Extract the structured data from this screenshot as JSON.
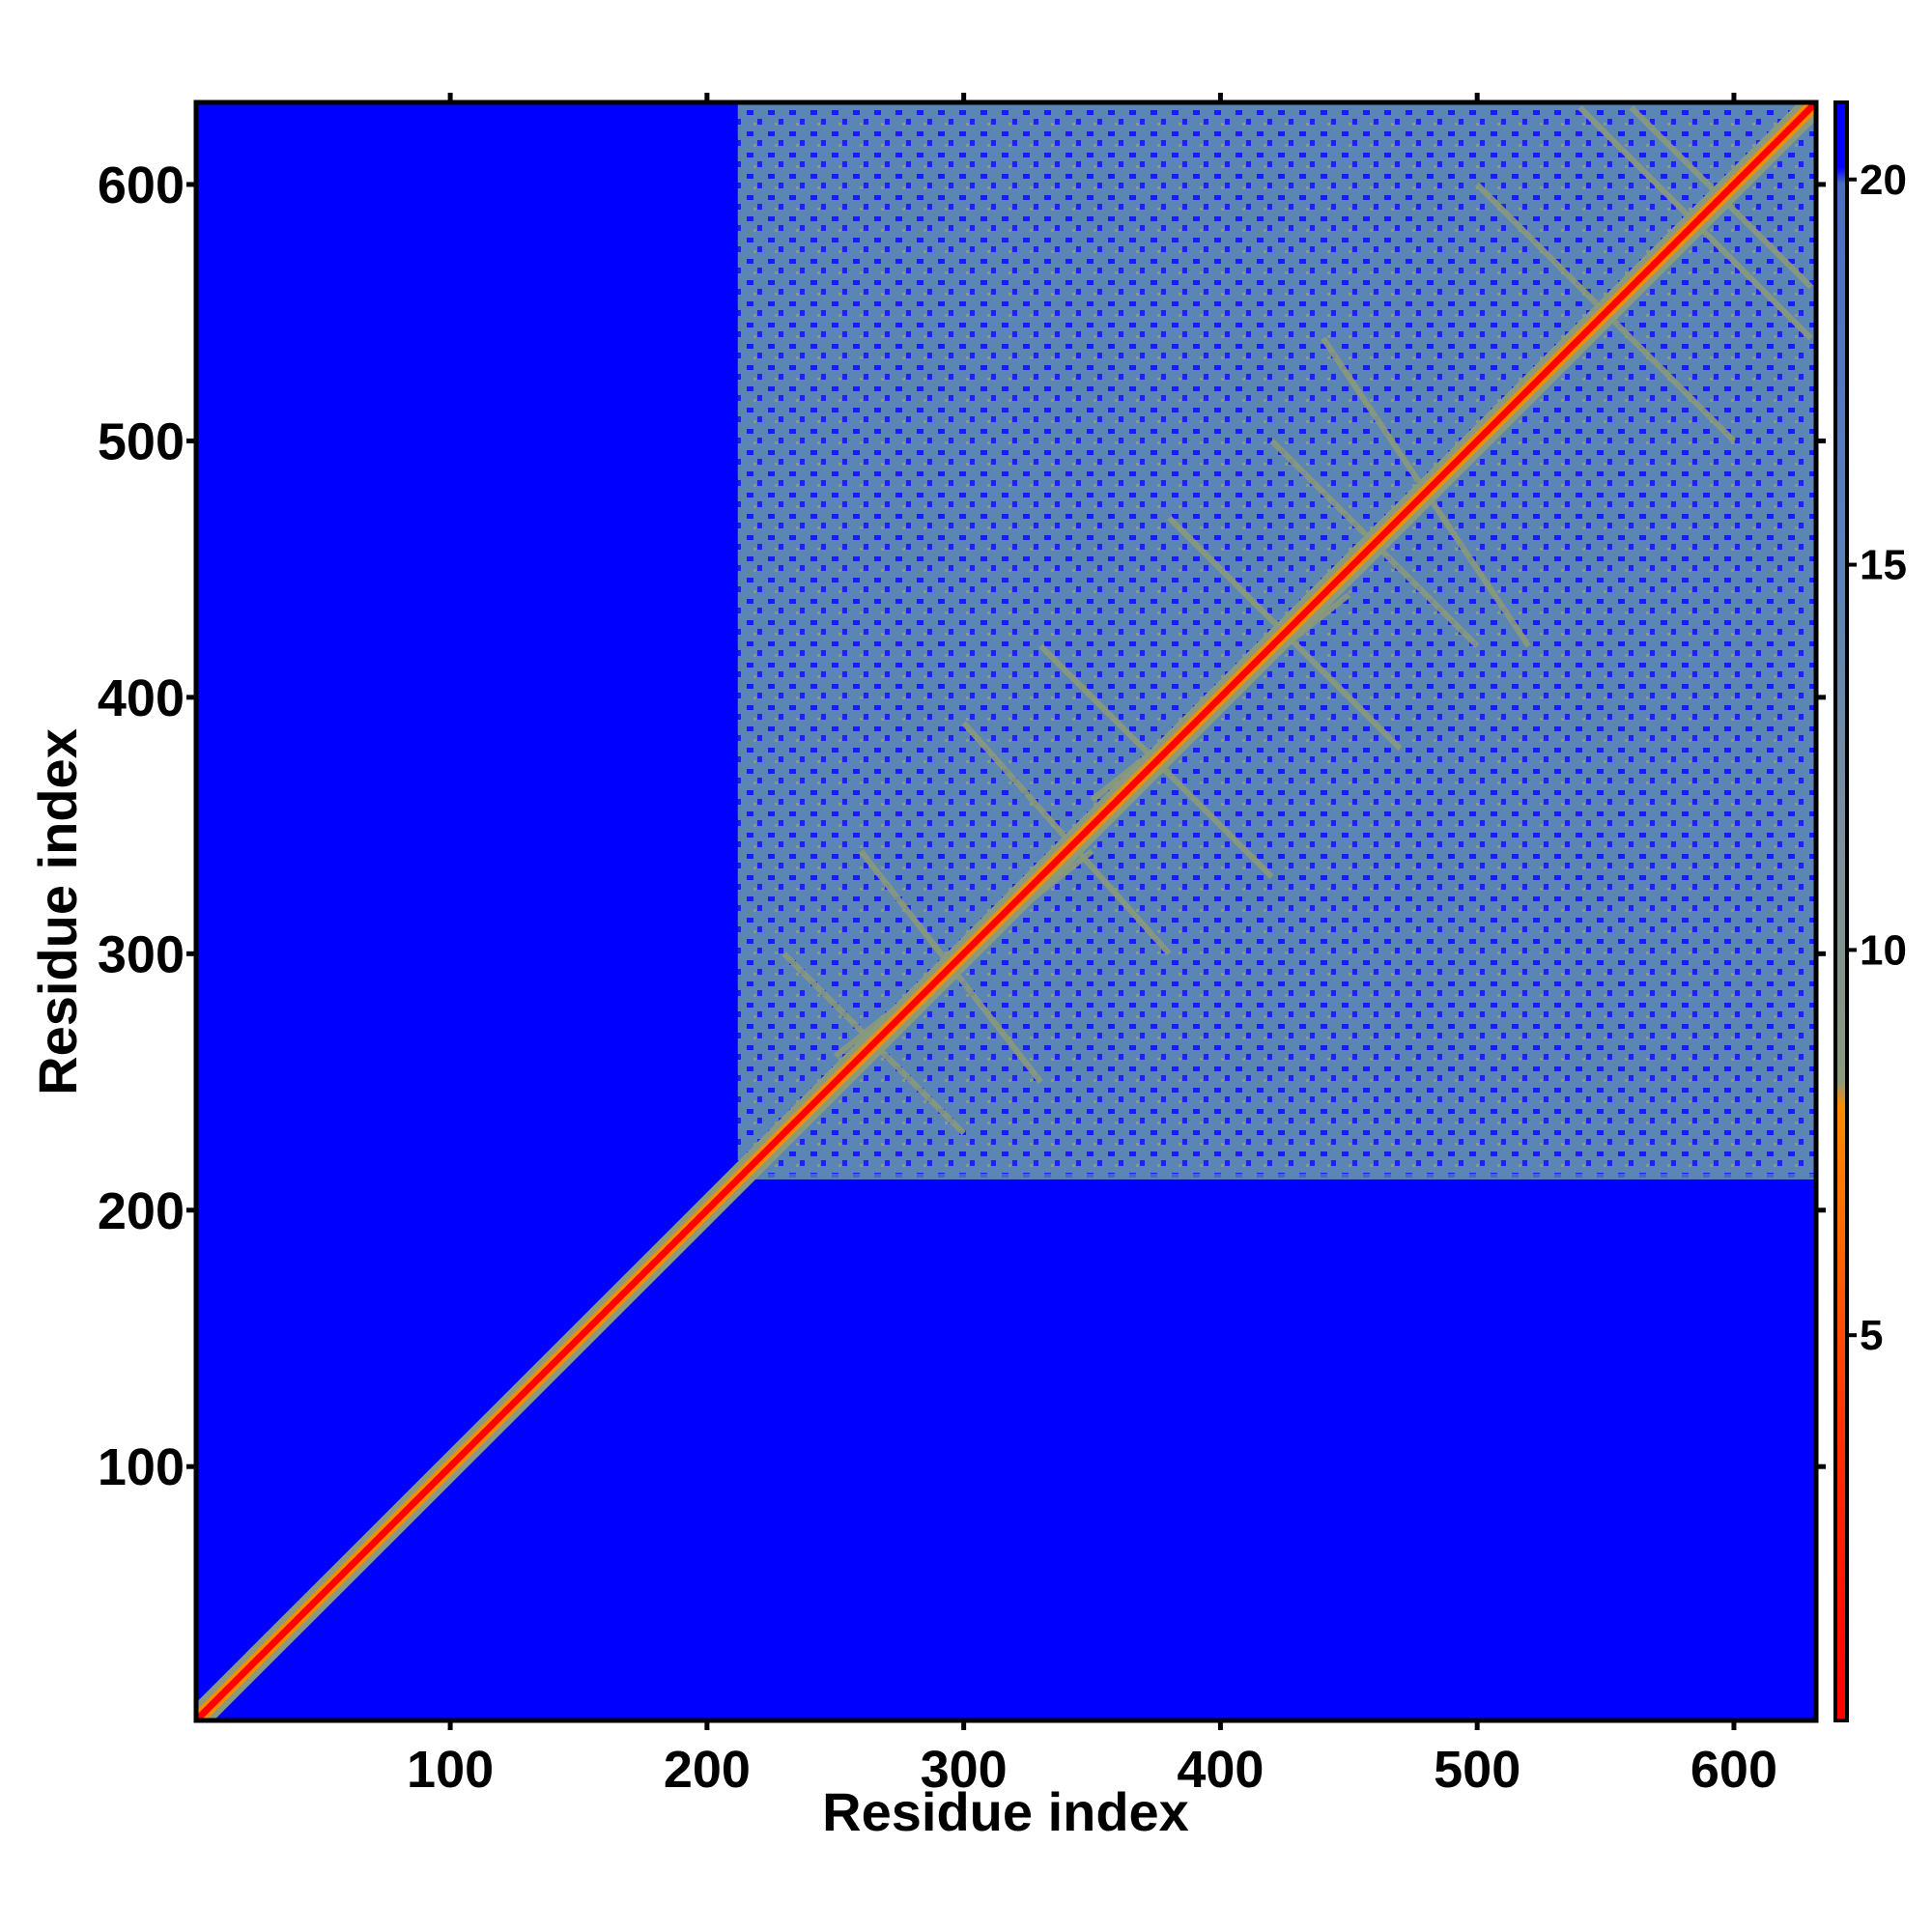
{
  "chart_data": {
    "type": "heatmap",
    "title": "",
    "xlabel": "Residue index",
    "ylabel": "Residue index",
    "xlim": [
      1,
      632
    ],
    "ylim": [
      1,
      632
    ],
    "x_ticks": [
      100,
      200,
      300,
      400,
      500,
      600
    ],
    "y_ticks": [
      100,
      200,
      300,
      400,
      500,
      600
    ],
    "x_tick_labels": [
      "100",
      "200",
      "300",
      "400",
      "500",
      "600"
    ],
    "y_tick_labels": [
      "100",
      "200",
      "300",
      "400",
      "500",
      "600"
    ],
    "grid": false,
    "colorbar": {
      "range": [
        0,
        21
      ],
      "ticks": [
        5,
        10,
        15,
        20
      ],
      "tick_labels": [
        "5",
        "10",
        "15",
        "20"
      ],
      "colors": {
        "close": "#ff0000",
        "mid": "#ff8c00",
        "contact": "#8a9a7c",
        "far": "#5b85b5",
        "none": "#0000ff"
      }
    },
    "regions": [
      {
        "description": "diagonal contacts",
        "x_range": [
          1,
          632
        ],
        "y_range": [
          1,
          632
        ],
        "value_range": [
          0,
          8
        ]
      },
      {
        "description": "folded domain with dense medium-range distances",
        "x_range": [
          212,
          632
        ],
        "y_range": [
          212,
          632
        ],
        "value_range": [
          5,
          21
        ]
      },
      {
        "description": "disordered N-terminal region, no long-range contacts",
        "x_range": [
          1,
          210
        ],
        "y_range": [
          1,
          210
        ],
        "value_range": [
          21,
          21
        ]
      }
    ]
  }
}
